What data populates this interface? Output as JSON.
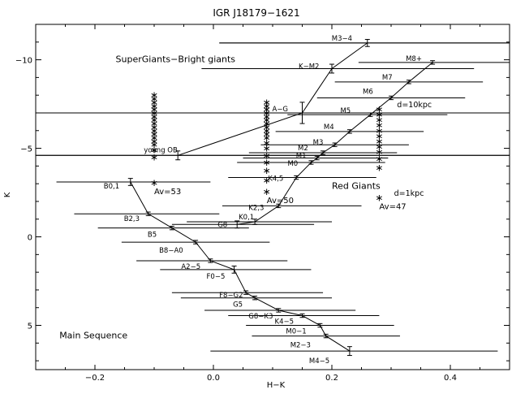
{
  "chart_data": {
    "type": "scatter",
    "title": "IGR J18179−1621",
    "xlabel": "H−K",
    "ylabel": "K",
    "xlim": [
      -0.3,
      0.5
    ],
    "ylim": [
      7.5,
      -12
    ],
    "x_ticks": [
      -0.2,
      0.0,
      0.2,
      0.4
    ],
    "x_tick_labels": [
      "−0.2",
      "0.0",
      "0.2",
      "0.4"
    ],
    "y_ticks": [
      -10,
      -5,
      0,
      5
    ],
    "y_tick_labels": [
      "−10",
      "−5",
      "0",
      "5"
    ],
    "grid": false,
    "reference_lines": [
      {
        "x1": 0.01,
        "x2": 0.5,
        "y": -10.95
      },
      {
        "x1": -0.3,
        "x2": 0.5,
        "y": -7.0
      },
      {
        "x1": -0.3,
        "x2": 0.5,
        "y": -4.6
      }
    ],
    "sequences": [
      {
        "name": "Main Sequence",
        "points": [
          {
            "label": "B0,1",
            "x": -0.14,
            "y": -3.1,
            "err": 0.2,
            "hx1": -0.265,
            "hx2": -0.005
          },
          {
            "label": "B2,3",
            "x": -0.11,
            "y": -1.3,
            "err": 0.1,
            "hx1": -0.235,
            "hx2": 0.01
          },
          {
            "label": "B5",
            "x": -0.07,
            "y": -0.5,
            "err": 0.1,
            "hx1": -0.195,
            "hx2": 0.06
          },
          {
            "label": "B8−A0",
            "x": -0.03,
            "y": 0.3,
            "err": 0.1,
            "hx1": -0.155,
            "hx2": 0.095
          },
          {
            "label": "A2−5",
            "x": -0.005,
            "y": 1.35,
            "err": 0.1,
            "hx1": -0.13,
            "hx2": 0.125
          },
          {
            "label": "F0−5",
            "x": 0.035,
            "y": 1.85,
            "err": 0.2,
            "hx1": -0.09,
            "hx2": 0.165
          },
          {
            "label": "F8−G2",
            "x": 0.055,
            "y": 3.15,
            "err": 0.1,
            "hx1": -0.07,
            "hx2": 0.185
          },
          {
            "label": "G5",
            "x": 0.07,
            "y": 3.45,
            "err": 0.1,
            "hx1": -0.055,
            "hx2": 0.2
          },
          {
            "label": "G8−K3",
            "x": 0.11,
            "y": 4.15,
            "err": 0.1,
            "hx1": -0.015,
            "hx2": 0.24
          },
          {
            "label": "K4−5",
            "x": 0.15,
            "y": 4.45,
            "err": 0.1,
            "hx1": 0.025,
            "hx2": 0.28
          },
          {
            "label": "M0−1",
            "x": 0.18,
            "y": 5.0,
            "err": 0.1,
            "hx1": 0.055,
            "hx2": 0.305
          },
          {
            "label": "M2−3",
            "x": 0.19,
            "y": 5.6,
            "err": 0.1,
            "hx1": 0.065,
            "hx2": 0.315
          },
          {
            "label": "M4−5",
            "x": 0.23,
            "y": 6.45,
            "err": 0.25,
            "hx1": -0.005,
            "hx2": 0.48
          }
        ]
      },
      {
        "name": "Red Giants",
        "points": [
          {
            "label": "G8",
            "x": 0.04,
            "y": -0.7,
            "err": 0.2,
            "hx1": -0.07,
            "hx2": 0.17
          },
          {
            "label": "K0,1",
            "x": 0.07,
            "y": -0.85,
            "err": 0.15,
            "hx1": -0.045,
            "hx2": 0.2
          },
          {
            "label": "K2,3",
            "x": 0.11,
            "y": -1.75,
            "err": 0.1,
            "hx1": 0.015,
            "hx2": 0.25
          },
          {
            "label": "K4,5",
            "x": 0.14,
            "y": -3.35,
            "err": 0.1,
            "hx1": 0.025,
            "hx2": 0.275
          },
          {
            "label": "M0",
            "x": 0.165,
            "y": -4.2,
            "err": 0.1,
            "hx1": 0.04,
            "hx2": 0.29
          },
          {
            "label": "M1",
            "x": 0.175,
            "y": -4.45,
            "err": 0.1,
            "hx1": 0.05,
            "hx2": 0.295
          },
          {
            "label": "M2",
            "x": 0.185,
            "y": -4.75,
            "err": 0.1,
            "hx1": 0.06,
            "hx2": 0.31
          },
          {
            "label": "M3",
            "x": 0.205,
            "y": -5.2,
            "err": 0.1,
            "hx1": 0.08,
            "hx2": 0.33
          },
          {
            "label": "M4",
            "x": 0.23,
            "y": -5.95,
            "err": 0.1,
            "hx1": 0.105,
            "hx2": 0.355
          },
          {
            "label": "M5",
            "x": 0.265,
            "y": -6.9,
            "err": 0.1,
            "hx1": 0.125,
            "hx2": 0.395
          },
          {
            "label": "M6",
            "x": 0.3,
            "y": -7.85,
            "err": 0.1,
            "hx1": 0.175,
            "hx2": 0.425
          },
          {
            "label": "M7",
            "x": 0.33,
            "y": -8.75,
            "err": 0.1,
            "hx1": 0.205,
            "hx2": 0.455
          },
          {
            "label": "M8+",
            "x": 0.37,
            "y": -9.85,
            "err": 0.1,
            "hx1": 0.245,
            "hx2": 0.5
          }
        ]
      },
      {
        "name": "SuperGiants−Bright giants",
        "points": [
          {
            "label": "young OB",
            "x": -0.06,
            "y": -4.6,
            "err": 0.25,
            "hx1": -0.3,
            "hx2": 0.5
          },
          {
            "label": "A−G",
            "x": 0.15,
            "y": -7.0,
            "err": 0.6,
            "hx1": -0.3,
            "hx2": 0.5
          },
          {
            "label": "K−M2",
            "x": 0.2,
            "y": -9.5,
            "err": 0.25,
            "hx1": -0.02,
            "hx2": 0.44
          },
          {
            "label": "M3−4",
            "x": 0.26,
            "y": -10.95,
            "err": 0.2,
            "hx1": 0.01,
            "hx2": 0.5
          }
        ]
      }
    ],
    "extinction_markers": [
      {
        "label": "Av=53",
        "x": -0.1,
        "y": -3.05
      },
      {
        "label": "Av=50",
        "x": 0.09,
        "y": -2.55
      },
      {
        "label": "Av=47",
        "x": 0.28,
        "y": -2.2
      }
    ],
    "asterisk_columns": [
      {
        "x": -0.1,
        "y": [
          -8.0,
          -7.8,
          -7.6,
          -7.4,
          -7.2,
          -7.0,
          -6.8,
          -6.6,
          -6.4,
          -6.2,
          -6.0,
          -5.8,
          -5.6,
          -5.4,
          -5.2,
          -4.9,
          -4.5,
          -3.05
        ]
      },
      {
        "x": 0.09,
        "y": [
          -7.6,
          -7.4,
          -7.2,
          -7.0,
          -6.8,
          -6.6,
          -6.4,
          -6.2,
          -6.0,
          -5.8,
          -5.6,
          -5.3,
          -5.0,
          -4.6,
          -4.2,
          -3.75,
          -3.2,
          -2.55
        ]
      },
      {
        "x": 0.28,
        "y": [
          -7.2,
          -6.9,
          -6.6,
          -6.3,
          -6.0,
          -5.7,
          -5.4,
          -5.1,
          -4.8,
          -4.4,
          -3.9,
          -2.2
        ]
      }
    ],
    "annotations": [
      {
        "text": "SuperGiants−Bright giants",
        "x": -0.165,
        "y": -10.05
      },
      {
        "text": "Red Giants",
        "x": 0.2,
        "y": -2.9
      },
      {
        "text": "Main Sequence",
        "x": -0.26,
        "y": 5.55
      },
      {
        "text": "d=10kpc",
        "x": 0.31,
        "y": -7.5
      },
      {
        "text": "d=1kpc",
        "x": 0.305,
        "y": -2.5
      }
    ]
  }
}
